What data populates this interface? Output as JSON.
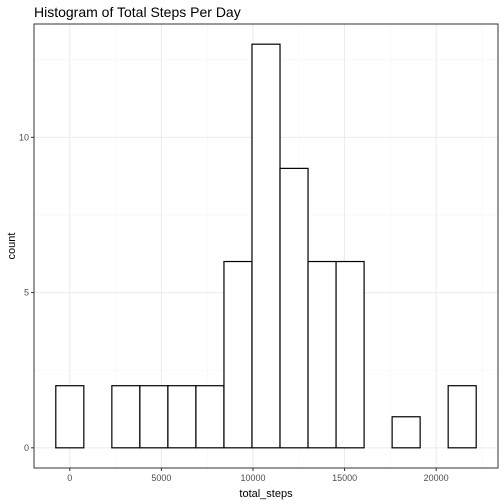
{
  "chart_data": {
    "type": "bar",
    "title": "Histogram of Total Steps Per Day",
    "xlabel": "total_steps",
    "ylabel": "count",
    "bins": [
      {
        "center": 0,
        "count": 2
      },
      {
        "center": 1530,
        "count": 0
      },
      {
        "center": 3060,
        "count": 2
      },
      {
        "center": 4590,
        "count": 2
      },
      {
        "center": 6120,
        "count": 2
      },
      {
        "center": 7650,
        "count": 2
      },
      {
        "center": 9180,
        "count": 6
      },
      {
        "center": 10710,
        "count": 13
      },
      {
        "center": 12240,
        "count": 9
      },
      {
        "center": 13770,
        "count": 6
      },
      {
        "center": 15300,
        "count": 6
      },
      {
        "center": 16830,
        "count": 0
      },
      {
        "center": 18360,
        "count": 1
      },
      {
        "center": 19890,
        "count": 0
      },
      {
        "center": 21420,
        "count": 2
      }
    ],
    "binwidth": 1530,
    "x_ticks": [
      0,
      5000,
      10000,
      15000,
      20000
    ],
    "x_tick_labels": [
      "0",
      "5000",
      "10000",
      "15000",
      "20000"
    ],
    "y_ticks": [
      0,
      5,
      10
    ],
    "y_tick_labels": [
      "0",
      "5",
      "10"
    ],
    "xlim": [
      -1955,
      23375
    ],
    "ylim": [
      -0.65,
      13.65
    ],
    "grid": true,
    "colors": {
      "bar_fill": "#ffffff",
      "bar_stroke": "#000000",
      "grid_major": "#ebebeb",
      "grid_minor": "#f5f5f5",
      "panel_border": "#333333"
    }
  }
}
